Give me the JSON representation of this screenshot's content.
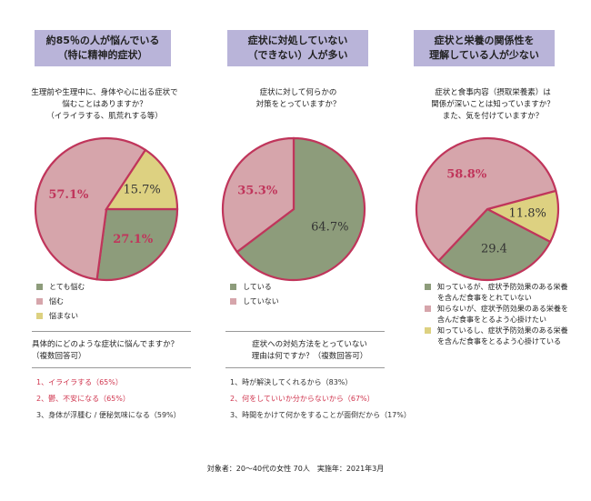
{
  "chart_data": [
    {
      "type": "pie",
      "header": [
        "約85％の人が悩んでいる",
        "（特に精神的症状）"
      ],
      "question": [
        "生理前や生理中に、身体や心に出る症状で",
        "悩むことはありますか？",
        "（イライラする、肌荒れする等）"
      ],
      "categories": [
        "とても悩む",
        "悩む",
        "悩まない"
      ],
      "values": [
        27.1,
        57.1,
        15.7
      ],
      "value_labels": [
        "27.1%",
        "57.1%",
        "15.7%"
      ],
      "colors": [
        "#8d9c7b",
        "#d6a5ab",
        "#ddd181"
      ],
      "label_colors": [
        "#c0355b",
        "#c0355b",
        "#333333"
      ],
      "followup": {
        "question": [
          "具体的にどのような症状に悩んでますか？",
          "（複数回答可）"
        ],
        "items": [
          {
            "text": "1、イライラする（65%）",
            "color": "#d0364f"
          },
          {
            "text": "2、鬱、不安になる（65%）",
            "color": "#d0364f"
          },
          {
            "text": "3、身体が浮腫む / 便秘気味になる（59%）",
            "color": "#333333"
          }
        ]
      }
    },
    {
      "type": "pie",
      "header": [
        "症状に対処していない",
        "（できない）人が多い"
      ],
      "question": [
        "症状に対して何らかの",
        "対策をとっていますか？"
      ],
      "categories": [
        "している",
        "していない"
      ],
      "values": [
        64.7,
        35.3
      ],
      "value_labels": [
        "64.7%",
        "35.3%"
      ],
      "colors": [
        "#8d9c7b",
        "#d6a5ab"
      ],
      "label_colors": [
        "#333333",
        "#c0355b"
      ],
      "followup": {
        "question": [
          "症状への対処方法をとっていない",
          "理由は何ですか？（複数回答可）"
        ],
        "items": [
          {
            "text": "1、時が解決してくれるから（83%）",
            "color": "#333333"
          },
          {
            "text": "2、何をしていいか分からないから（67%）",
            "color": "#d0364f"
          },
          {
            "text": "3、時間をかけて何かをすることが面倒だから（17%）",
            "color": "#333333"
          }
        ]
      }
    },
    {
      "type": "pie",
      "header": [
        "症状と栄養の関係性を",
        "理解している人が少ない"
      ],
      "question": [
        "症状と食事内容（摂取栄養素）は",
        "関係が深いことは知っていますか？",
        "また、気を付けていますか？"
      ],
      "categories": [
        "知っているが、症状予防効果のある栄養を含んだ食事をとれていない",
        "知らないが、症状予防効果のある栄養を含んだ食事をとるよう心掛けたい",
        "知っているし、症状予防効果のある栄養を含んだ食事をとるよう心掛けている"
      ],
      "values": [
        29.4,
        58.8,
        11.8
      ],
      "value_labels": [
        "29.4",
        "58.8%",
        "11.8%"
      ],
      "colors": [
        "#8d9c7b",
        "#d6a5ab",
        "#ddd181"
      ],
      "label_colors": [
        "#333333",
        "#c0355b",
        "#333333"
      ]
    }
  ],
  "footer": "対象者：20～40代の女性 70人　実施年：2021年3月"
}
